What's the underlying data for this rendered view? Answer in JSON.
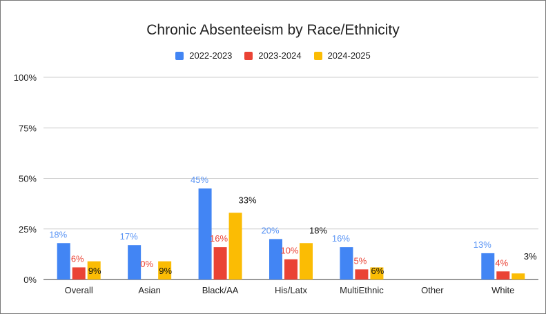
{
  "chart_data": {
    "type": "bar",
    "title": "Chronic Absenteeism by Race/Ethnicity",
    "categories": [
      "Overall",
      "Asian",
      "Black/AA",
      "His/Latx",
      "MultiEthnic",
      "Other",
      "White"
    ],
    "series": [
      {
        "name": "2022-2023",
        "color": "#4285f4",
        "label_color": "#5b95f5",
        "values": [
          18,
          17,
          45,
          20,
          16,
          null,
          13
        ],
        "labels": [
          "18%",
          "17%",
          "45%",
          "20%",
          "16%",
          "",
          "13%"
        ]
      },
      {
        "name": "2023-2024",
        "color": "#ea4335",
        "label_color": "#ea4335",
        "values": [
          6,
          0,
          16,
          10,
          5,
          null,
          4
        ],
        "labels": [
          "6%",
          "0%",
          "16%",
          "10%",
          "5%",
          "",
          "4%"
        ]
      },
      {
        "name": "2024-2025",
        "color": "#fbbc04",
        "label_color": "#111111",
        "values": [
          9,
          9,
          33,
          18,
          6,
          null,
          3
        ],
        "labels": [
          "9%",
          "9%",
          "33%",
          "18%",
          "6%",
          "",
          "3%"
        ]
      }
    ],
    "y_ticks": [
      "0%",
      "25%",
      "50%",
      "75%",
      "100%"
    ],
    "y_tick_values": [
      0,
      25,
      50,
      75,
      100
    ],
    "ylim": [
      0,
      100
    ],
    "grid": true,
    "legend_position": "top-center",
    "xlabel": "",
    "ylabel": ""
  }
}
